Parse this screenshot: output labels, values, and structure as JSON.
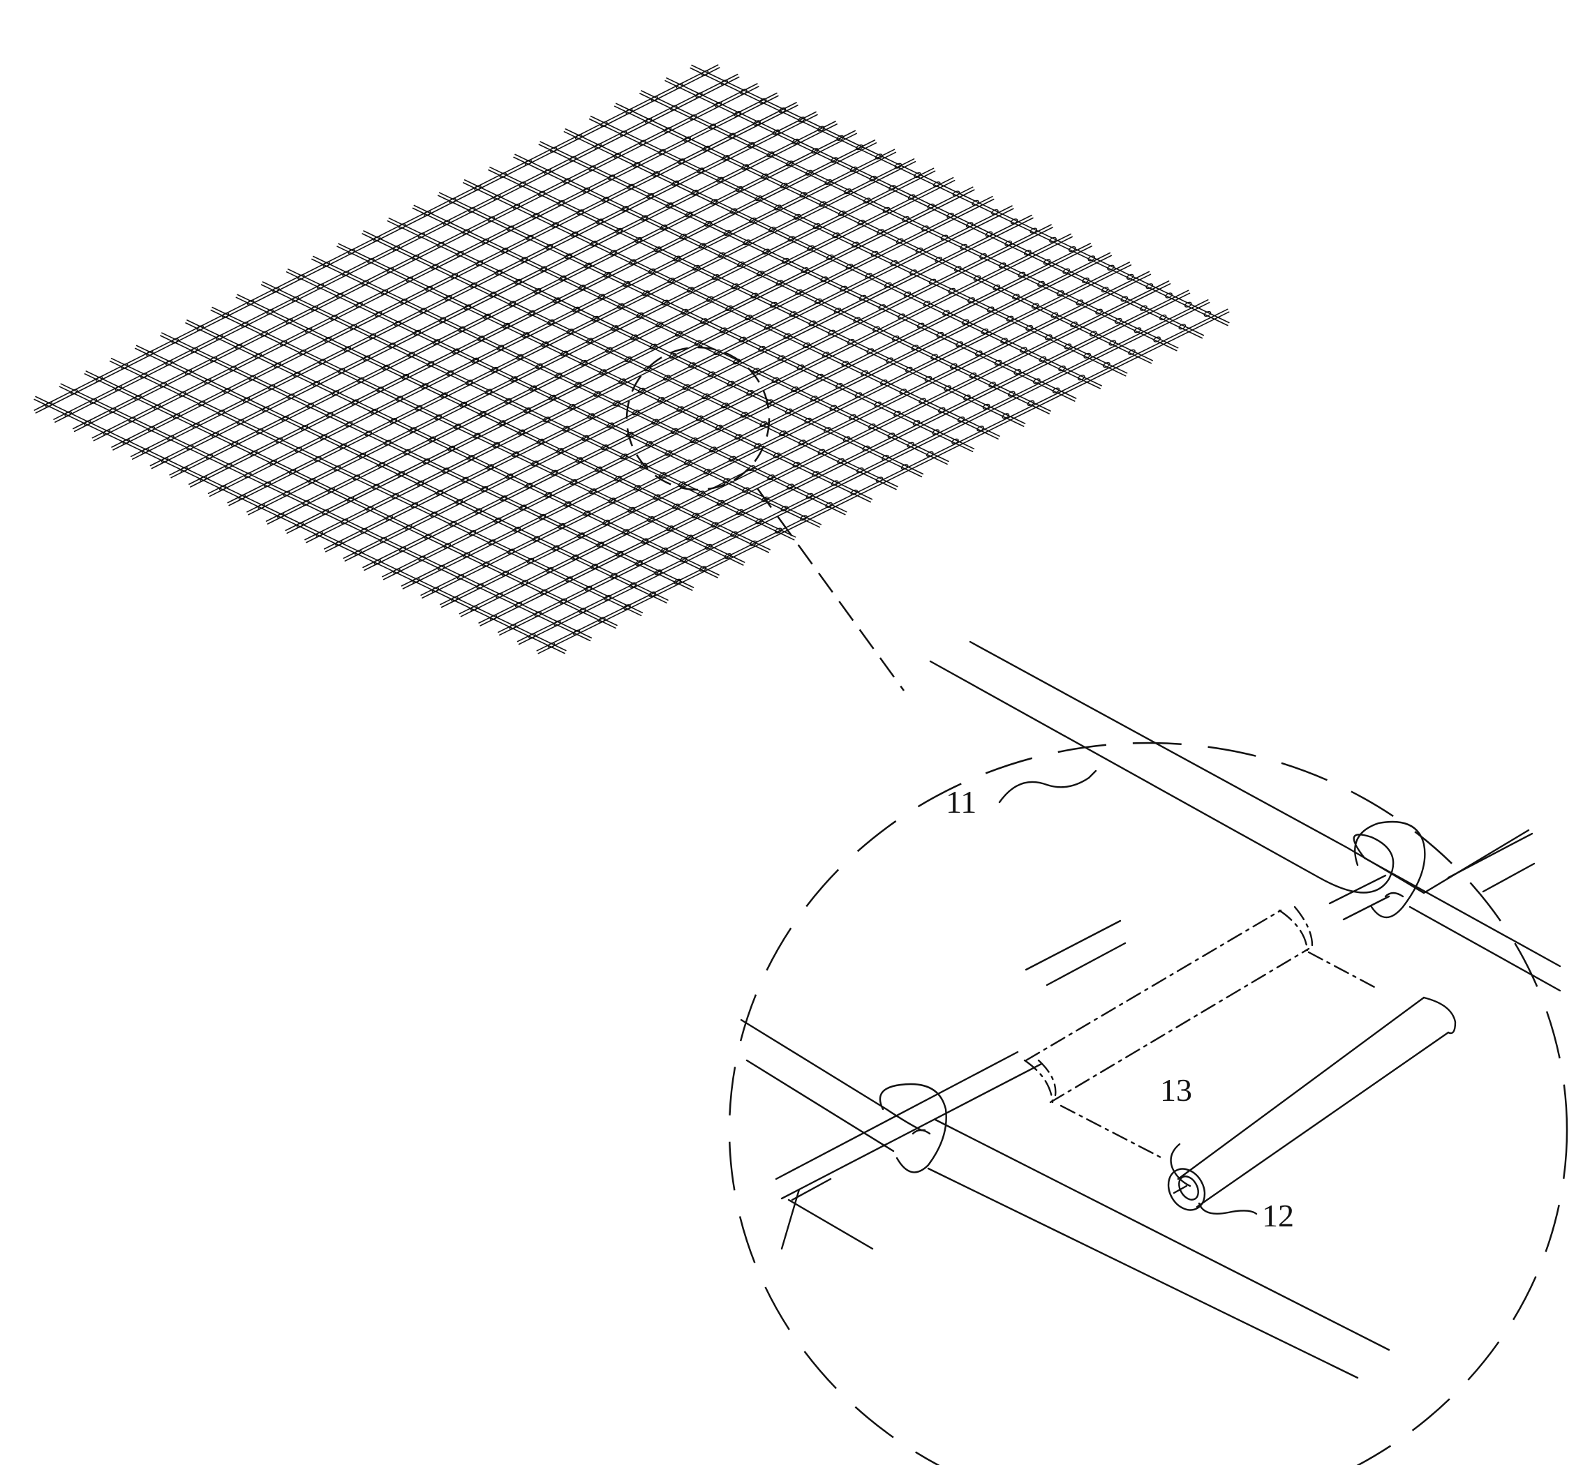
{
  "figure": {
    "labels": {
      "wire": "11",
      "tube": "12",
      "slit": "13"
    },
    "colors": {
      "line": "#111111",
      "background": "#ffffff"
    }
  }
}
